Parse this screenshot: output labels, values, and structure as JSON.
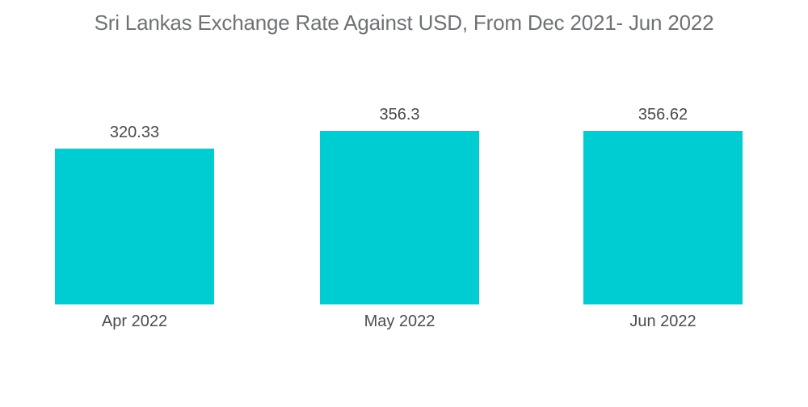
{
  "title": "Sri Lankas Exchange Rate Against USD, From Dec 2021- Jun 2022",
  "colors": {
    "background": "#ffffff",
    "bar": "#00CDD2",
    "title_text": "#6f7275",
    "label_text": "#47494b"
  },
  "chart_data": {
    "type": "bar",
    "title": "Sri Lankas Exchange Rate Against USD, From Dec 2021- Jun 2022",
    "categories": [
      "Apr 2022",
      "May 2022",
      "Jun 2022"
    ],
    "values": [
      320.33,
      356.3,
      356.62
    ],
    "series_name": "Exchange Rate Against USD",
    "xlabel": "",
    "ylabel": "",
    "y_baseline": 0,
    "bar_color": "#00CDD2",
    "bar_labels_position": "above",
    "axes_visible": false,
    "gridlines": false,
    "legend": "none"
  }
}
